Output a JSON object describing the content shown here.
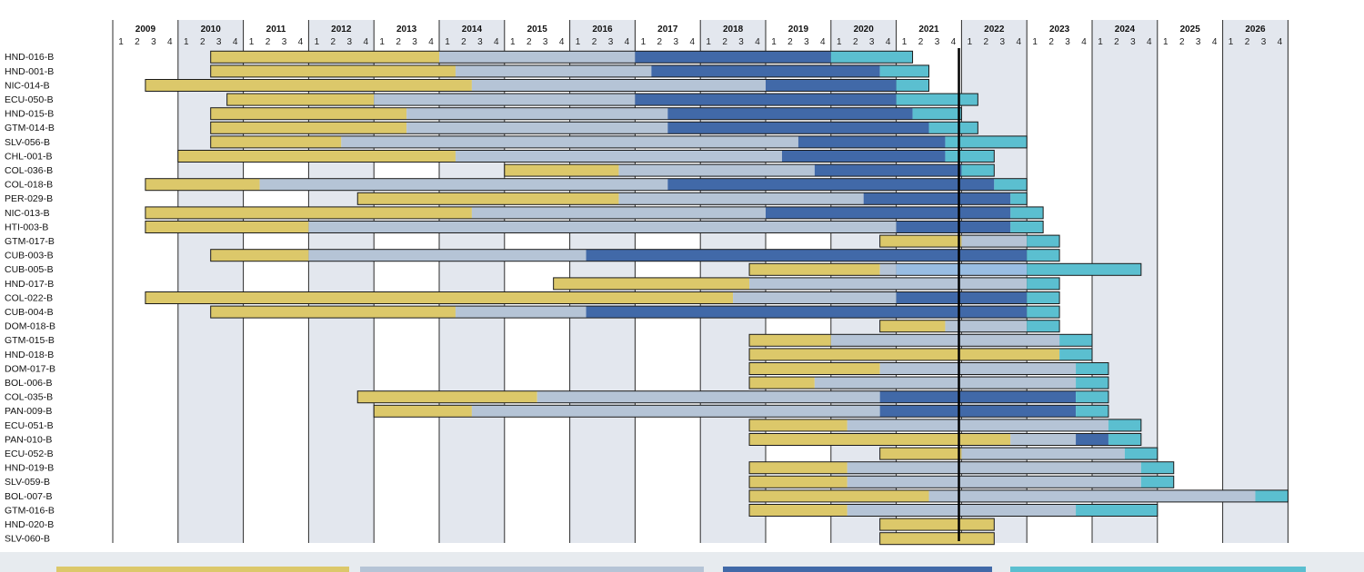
{
  "chart_data": {
    "type": "gantt",
    "title": "",
    "years": [
      "2009",
      "2010",
      "2011",
      "2012",
      "2013",
      "2014",
      "2015",
      "2016",
      "2017",
      "2018",
      "2019",
      "2020",
      "2021",
      "2022",
      "2023",
      "2024",
      "2025",
      "2026"
    ],
    "quarter_labels": [
      "1",
      "2",
      "3",
      "4"
    ],
    "time_range": [
      2009.0,
      2027.0
    ],
    "current_marker": 2021.96,
    "shaded_years": [
      "2010",
      "2012",
      "2014",
      "2016",
      "2018",
      "2020",
      "2022",
      "2024",
      "2026"
    ],
    "phases": [
      {
        "key": "prep",
        "color": "#dcc86a"
      },
      {
        "key": "impl",
        "color": "#b5c4d6"
      },
      {
        "key": "full",
        "color": "#4169a8"
      },
      {
        "key": "close",
        "color": "#5bbfd0"
      },
      {
        "key": "ext",
        "color": "#99bde3"
      }
    ],
    "projects": [
      {
        "name": "HND-016-B",
        "segments": [
          [
            2010.5,
            2014.0,
            "prep"
          ],
          [
            2014.0,
            2017.0,
            "impl"
          ],
          [
            2017.0,
            2020.0,
            "full"
          ],
          [
            2020.0,
            2021.25,
            "close"
          ]
        ]
      },
      {
        "name": "HND-001-B",
        "segments": [
          [
            2010.5,
            2014.25,
            "prep"
          ],
          [
            2014.25,
            2017.25,
            "impl"
          ],
          [
            2017.25,
            2020.75,
            "full"
          ],
          [
            2020.75,
            2021.5,
            "close"
          ]
        ]
      },
      {
        "name": "NIC-014-B",
        "segments": [
          [
            2009.5,
            2014.5,
            "prep"
          ],
          [
            2014.5,
            2019.0,
            "impl"
          ],
          [
            2019.0,
            2021.0,
            "full"
          ],
          [
            2021.0,
            2021.5,
            "close"
          ]
        ]
      },
      {
        "name": "ECU-050-B",
        "segments": [
          [
            2010.75,
            2013.0,
            "prep"
          ],
          [
            2013.0,
            2017.0,
            "impl"
          ],
          [
            2017.0,
            2021.0,
            "full"
          ],
          [
            2021.0,
            2022.25,
            "close"
          ]
        ]
      },
      {
        "name": "HND-015-B",
        "segments": [
          [
            2010.5,
            2013.5,
            "prep"
          ],
          [
            2013.5,
            2017.5,
            "impl"
          ],
          [
            2017.5,
            2021.25,
            "full"
          ],
          [
            2021.25,
            2022.0,
            "close"
          ]
        ]
      },
      {
        "name": "GTM-014-B",
        "segments": [
          [
            2010.5,
            2013.5,
            "prep"
          ],
          [
            2013.5,
            2017.5,
            "impl"
          ],
          [
            2017.5,
            2021.5,
            "full"
          ],
          [
            2021.5,
            2022.25,
            "close"
          ]
        ]
      },
      {
        "name": "SLV-056-B",
        "segments": [
          [
            2010.5,
            2012.5,
            "prep"
          ],
          [
            2012.5,
            2019.5,
            "impl"
          ],
          [
            2019.5,
            2021.75,
            "full"
          ],
          [
            2021.75,
            2023.0,
            "close"
          ]
        ]
      },
      {
        "name": "CHL-001-B",
        "segments": [
          [
            2010.0,
            2014.25,
            "prep"
          ],
          [
            2014.25,
            2019.25,
            "impl"
          ],
          [
            2019.25,
            2021.75,
            "full"
          ],
          [
            2021.75,
            2022.5,
            "close"
          ]
        ]
      },
      {
        "name": "COL-036-B",
        "segments": [
          [
            2015.0,
            2016.75,
            "prep"
          ],
          [
            2016.75,
            2019.75,
            "impl"
          ],
          [
            2019.75,
            2022.0,
            "full"
          ],
          [
            2022.0,
            2022.5,
            "close"
          ]
        ]
      },
      {
        "name": "COL-018-B",
        "segments": [
          [
            2009.5,
            2011.25,
            "prep"
          ],
          [
            2011.25,
            2017.5,
            "impl"
          ],
          [
            2017.5,
            2022.5,
            "full"
          ],
          [
            2022.5,
            2023.0,
            "close"
          ]
        ]
      },
      {
        "name": "PER-029-B",
        "segments": [
          [
            2012.75,
            2016.75,
            "prep"
          ],
          [
            2016.75,
            2020.5,
            "impl"
          ],
          [
            2020.5,
            2022.75,
            "full"
          ],
          [
            2022.75,
            2023.0,
            "close"
          ]
        ]
      },
      {
        "name": "NIC-013-B",
        "segments": [
          [
            2009.5,
            2014.5,
            "prep"
          ],
          [
            2014.5,
            2019.0,
            "impl"
          ],
          [
            2019.0,
            2022.75,
            "full"
          ],
          [
            2022.75,
            2023.25,
            "close"
          ]
        ]
      },
      {
        "name": "HTI-003-B",
        "segments": [
          [
            2009.5,
            2012.0,
            "prep"
          ],
          [
            2012.0,
            2021.0,
            "impl"
          ],
          [
            2021.0,
            2022.75,
            "full"
          ],
          [
            2022.75,
            2023.25,
            "close"
          ]
        ]
      },
      {
        "name": "GTM-017-B",
        "segments": [
          [
            2020.75,
            2022.0,
            "prep"
          ],
          [
            2022.0,
            2023.0,
            "impl"
          ],
          [
            2023.0,
            2023.5,
            "close"
          ]
        ]
      },
      {
        "name": "CUB-003-B",
        "segments": [
          [
            2010.5,
            2012.0,
            "prep"
          ],
          [
            2012.0,
            2016.25,
            "impl"
          ],
          [
            2016.25,
            2023.0,
            "full"
          ],
          [
            2023.0,
            2023.5,
            "close"
          ]
        ]
      },
      {
        "name": "CUB-005-B",
        "segments": [
          [
            2018.75,
            2020.75,
            "prep"
          ],
          [
            2020.75,
            2021.0,
            "impl"
          ],
          [
            2021.0,
            2023.0,
            "ext"
          ],
          [
            2023.0,
            2024.75,
            "close"
          ]
        ]
      },
      {
        "name": "HND-017-B",
        "segments": [
          [
            2015.75,
            2018.75,
            "prep"
          ],
          [
            2018.75,
            2023.0,
            "impl"
          ],
          [
            2023.0,
            2023.5,
            "close"
          ]
        ]
      },
      {
        "name": "COL-022-B",
        "segments": [
          [
            2009.5,
            2018.5,
            "prep"
          ],
          [
            2018.5,
            2021.0,
            "impl"
          ],
          [
            2021.0,
            2023.0,
            "full"
          ],
          [
            2023.0,
            2023.5,
            "close"
          ]
        ]
      },
      {
        "name": "CUB-004-B",
        "segments": [
          [
            2010.5,
            2014.25,
            "prep"
          ],
          [
            2014.25,
            2016.25,
            "impl"
          ],
          [
            2016.25,
            2023.0,
            "full"
          ],
          [
            2023.0,
            2023.5,
            "close"
          ]
        ]
      },
      {
        "name": "DOM-018-B",
        "segments": [
          [
            2020.75,
            2021.75,
            "prep"
          ],
          [
            2021.75,
            2023.0,
            "impl"
          ],
          [
            2023.0,
            2023.5,
            "close"
          ]
        ]
      },
      {
        "name": "GTM-015-B",
        "segments": [
          [
            2018.75,
            2020.0,
            "prep"
          ],
          [
            2020.0,
            2023.5,
            "impl"
          ],
          [
            2023.5,
            2024.0,
            "close"
          ]
        ]
      },
      {
        "name": "HND-018-B",
        "segments": [
          [
            2018.75,
            2023.5,
            "prep"
          ],
          [
            2023.5,
            2024.0,
            "close"
          ]
        ]
      },
      {
        "name": "DOM-017-B",
        "segments": [
          [
            2018.75,
            2020.75,
            "prep"
          ],
          [
            2020.75,
            2023.75,
            "impl"
          ],
          [
            2023.75,
            2024.25,
            "close"
          ]
        ]
      },
      {
        "name": "BOL-006-B",
        "segments": [
          [
            2018.75,
            2019.75,
            "prep"
          ],
          [
            2019.75,
            2023.75,
            "impl"
          ],
          [
            2023.75,
            2024.25,
            "close"
          ]
        ]
      },
      {
        "name": "COL-035-B",
        "segments": [
          [
            2012.75,
            2015.5,
            "prep"
          ],
          [
            2015.5,
            2020.75,
            "impl"
          ],
          [
            2020.75,
            2023.75,
            "full"
          ],
          [
            2023.75,
            2024.25,
            "close"
          ]
        ]
      },
      {
        "name": "PAN-009-B",
        "segments": [
          [
            2013.0,
            2014.5,
            "prep"
          ],
          [
            2014.5,
            2020.75,
            "impl"
          ],
          [
            2020.75,
            2023.75,
            "full"
          ],
          [
            2023.75,
            2024.25,
            "close"
          ]
        ]
      },
      {
        "name": "ECU-051-B",
        "segments": [
          [
            2018.75,
            2020.25,
            "prep"
          ],
          [
            2020.25,
            2024.25,
            "impl"
          ],
          [
            2024.25,
            2024.75,
            "close"
          ]
        ]
      },
      {
        "name": "PAN-010-B",
        "segments": [
          [
            2018.75,
            2022.75,
            "prep"
          ],
          [
            2022.75,
            2023.75,
            "impl"
          ],
          [
            2023.75,
            2024.25,
            "full"
          ],
          [
            2024.25,
            2024.75,
            "close"
          ]
        ]
      },
      {
        "name": "ECU-052-B",
        "segments": [
          [
            2020.75,
            2022.0,
            "prep"
          ],
          [
            2022.0,
            2024.5,
            "impl"
          ],
          [
            2024.5,
            2025.0,
            "close"
          ]
        ]
      },
      {
        "name": "HND-019-B",
        "segments": [
          [
            2018.75,
            2020.25,
            "prep"
          ],
          [
            2020.25,
            2024.75,
            "impl"
          ],
          [
            2024.75,
            2025.25,
            "close"
          ]
        ]
      },
      {
        "name": "SLV-059-B",
        "segments": [
          [
            2018.75,
            2020.25,
            "prep"
          ],
          [
            2020.25,
            2024.75,
            "impl"
          ],
          [
            2024.75,
            2025.25,
            "close"
          ]
        ]
      },
      {
        "name": "BOL-007-B",
        "segments": [
          [
            2018.75,
            2021.5,
            "prep"
          ],
          [
            2021.5,
            2026.5,
            "impl"
          ],
          [
            2026.5,
            2027.0,
            "close"
          ]
        ]
      },
      {
        "name": "GTM-016-B",
        "segments": [
          [
            2018.75,
            2020.25,
            "prep"
          ],
          [
            2020.25,
            2023.75,
            "impl"
          ],
          [
            2023.75,
            2025.0,
            "close"
          ]
        ]
      },
      {
        "name": "HND-020-B",
        "segments": [
          [
            2020.75,
            2022.5,
            "prep"
          ]
        ]
      },
      {
        "name": "SLV-060-B",
        "segments": [
          [
            2020.75,
            2022.5,
            "prep"
          ]
        ]
      }
    ]
  }
}
